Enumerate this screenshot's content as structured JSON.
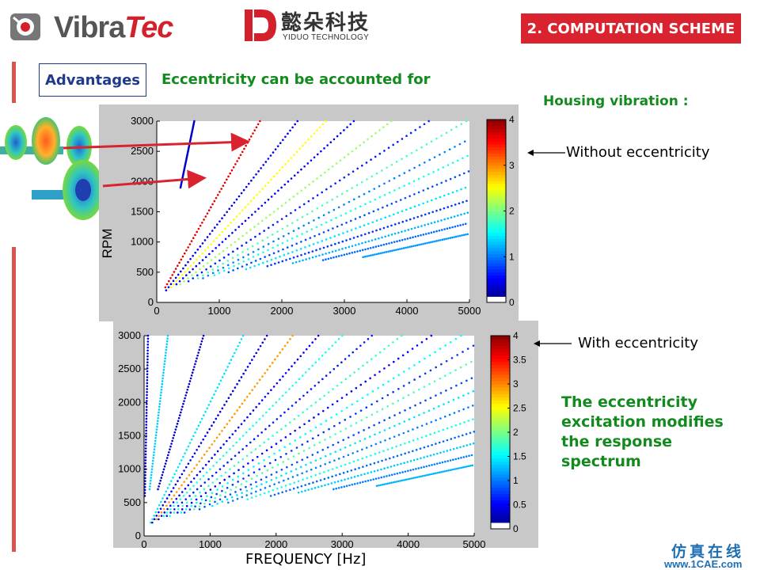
{
  "header": {
    "logo_vibratec": "VibraTec",
    "logo_vibratec_main": "Vibra",
    "logo_vibratec_accent": "Tec",
    "logo_yiduo_cn": "懿朵科技",
    "logo_yiduo_en": "YIDUO TECHNOLOGY",
    "section_title": "2. COMPUTATION SCHEME"
  },
  "advantages_label": "Advantages",
  "headline": "Eccentricity can be accounted for",
  "housing_label": "Housing vibration :",
  "annotations": {
    "without": "Without eccentricity",
    "with": "With eccentricity"
  },
  "conclusion": "The eccentricity excitation modifies the response spectrum",
  "footer": {
    "watermark_cn": "仿真在线",
    "watermark_url": "www.1CAE.com",
    "center_watermark": "1CAE.COM"
  },
  "colors": {
    "accent_red": "#d9232e",
    "headline_green": "#138a1e",
    "advantages_blue": "#1f3a8a"
  },
  "chart_data": [
    {
      "type": "scatter",
      "title": "Without eccentricity",
      "xlabel": "",
      "ylabel": "RPM",
      "xlim": [
        0,
        5000
      ],
      "ylim": [
        0,
        3000
      ],
      "xticks": [
        "0",
        "1000",
        "2000",
        "3000",
        "4000",
        "5000"
      ],
      "yticks": [
        "0",
        "500",
        "1000",
        "1500",
        "2000",
        "2500",
        "3000"
      ],
      "colorbar": {
        "ticks": [
          "0",
          "1",
          "2",
          "3",
          "4"
        ],
        "range": [
          0,
          4
        ]
      },
      "order_lines": [
        {
          "slope_hz_per_rpm": 0.2,
          "rpm_start": 1900,
          "rpm_end": 3000,
          "level": 0.3
        },
        {
          "slope_hz_per_rpm": 0.55,
          "rpm_start": 250,
          "rpm_end": 3000,
          "level": 3.6
        },
        {
          "slope_hz_per_rpm": 0.75,
          "rpm_start": 200,
          "rpm_end": 3000,
          "level": 0.4
        },
        {
          "slope_hz_per_rpm": 0.9,
          "rpm_start": 250,
          "rpm_end": 3000,
          "level": 2.5
        },
        {
          "slope_hz_per_rpm": 1.05,
          "rpm_start": 300,
          "rpm_end": 3000,
          "level": 0.5
        },
        {
          "slope_hz_per_rpm": 1.25,
          "rpm_start": 300,
          "rpm_end": 3000,
          "level": 2.1
        },
        {
          "slope_hz_per_rpm": 1.45,
          "rpm_start": 350,
          "rpm_end": 3000,
          "level": 0.6
        },
        {
          "slope_hz_per_rpm": 1.65,
          "rpm_start": 400,
          "rpm_end": 3000,
          "level": 1.8
        },
        {
          "slope_hz_per_rpm": 1.85,
          "rpm_start": 400,
          "rpm_end": 2750,
          "level": 1.0
        },
        {
          "slope_hz_per_rpm": 2.05,
          "rpm_start": 450,
          "rpm_end": 2500,
          "level": 1.6
        },
        {
          "slope_hz_per_rpm": 2.3,
          "rpm_start": 500,
          "rpm_end": 2200,
          "level": 0.8
        },
        {
          "slope_hz_per_rpm": 2.6,
          "rpm_start": 550,
          "rpm_end": 1950,
          "level": 1.4
        },
        {
          "slope_hz_per_rpm": 2.95,
          "rpm_start": 600,
          "rpm_end": 1700,
          "level": 0.7
        },
        {
          "slope_hz_per_rpm": 3.35,
          "rpm_start": 650,
          "rpm_end": 1500,
          "level": 1.2
        },
        {
          "slope_hz_per_rpm": 3.8,
          "rpm_start": 700,
          "rpm_end": 1300,
          "level": 0.9
        },
        {
          "slope_hz_per_rpm": 4.4,
          "rpm_start": 750,
          "rpm_end": 1130,
          "level": 1.1
        }
      ]
    },
    {
      "type": "scatter",
      "title": "With eccentricity",
      "xlabel": "FREQUENCY [Hz]",
      "ylabel": "RPM",
      "xlim": [
        0,
        5000
      ],
      "ylim": [
        0,
        3000
      ],
      "xticks": [
        "0",
        "1000",
        "2000",
        "3000",
        "4000",
        "5000"
      ],
      "yticks": [
        "0",
        "500",
        "1000",
        "1500",
        "2000",
        "2500",
        "3000"
      ],
      "colorbar": {
        "ticks": [
          "0",
          "0.5",
          "1",
          "1.5",
          "2",
          "2.5",
          "3",
          "3.5",
          "4"
        ],
        "range": [
          0,
          4
        ]
      },
      "order_lines": [
        {
          "slope_hz_per_rpm": 0.02,
          "rpm_start": 600,
          "rpm_end": 3000,
          "level": 0.4
        },
        {
          "slope_hz_per_rpm": 0.12,
          "rpm_start": 700,
          "rpm_end": 3000,
          "level": 1.3
        },
        {
          "slope_hz_per_rpm": 0.3,
          "rpm_start": 700,
          "rpm_end": 3000,
          "level": 0.3
        },
        {
          "slope_hz_per_rpm": 0.5,
          "rpm_start": 200,
          "rpm_end": 3000,
          "level": 1.4
        },
        {
          "slope_hz_per_rpm": 0.62,
          "rpm_start": 200,
          "rpm_end": 3000,
          "level": 0.4
        },
        {
          "slope_hz_per_rpm": 0.75,
          "rpm_start": 250,
          "rpm_end": 3000,
          "level": 2.9
        },
        {
          "slope_hz_per_rpm": 0.88,
          "rpm_start": 250,
          "rpm_end": 3000,
          "level": 0.5
        },
        {
          "slope_hz_per_rpm": 1.0,
          "rpm_start": 300,
          "rpm_end": 3000,
          "level": 1.6
        },
        {
          "slope_hz_per_rpm": 1.15,
          "rpm_start": 300,
          "rpm_end": 3000,
          "level": 0.6
        },
        {
          "slope_hz_per_rpm": 1.3,
          "rpm_start": 300,
          "rpm_end": 3000,
          "level": 1.7
        },
        {
          "slope_hz_per_rpm": 1.45,
          "rpm_start": 350,
          "rpm_end": 3000,
          "level": 0.5
        },
        {
          "slope_hz_per_rpm": 1.6,
          "rpm_start": 350,
          "rpm_end": 3000,
          "level": 1.5
        },
        {
          "slope_hz_per_rpm": 1.75,
          "rpm_start": 350,
          "rpm_end": 2850,
          "level": 0.7
        },
        {
          "slope_hz_per_rpm": 1.9,
          "rpm_start": 400,
          "rpm_end": 2650,
          "level": 1.8
        },
        {
          "slope_hz_per_rpm": 2.1,
          "rpm_start": 400,
          "rpm_end": 2400,
          "level": 0.8
        },
        {
          "slope_hz_per_rpm": 2.3,
          "rpm_start": 450,
          "rpm_end": 2200,
          "level": 1.4
        },
        {
          "slope_hz_per_rpm": 2.55,
          "rpm_start": 500,
          "rpm_end": 1980,
          "level": 1.0
        },
        {
          "slope_hz_per_rpm": 2.85,
          "rpm_start": 550,
          "rpm_end": 1770,
          "level": 1.6
        },
        {
          "slope_hz_per_rpm": 3.2,
          "rpm_start": 600,
          "rpm_end": 1580,
          "level": 0.9
        },
        {
          "slope_hz_per_rpm": 3.6,
          "rpm_start": 650,
          "rpm_end": 1400,
          "level": 1.3
        },
        {
          "slope_hz_per_rpm": 4.1,
          "rpm_start": 700,
          "rpm_end": 1230,
          "level": 1.0
        },
        {
          "slope_hz_per_rpm": 4.7,
          "rpm_start": 750,
          "rpm_end": 1070,
          "level": 1.2
        }
      ]
    }
  ]
}
